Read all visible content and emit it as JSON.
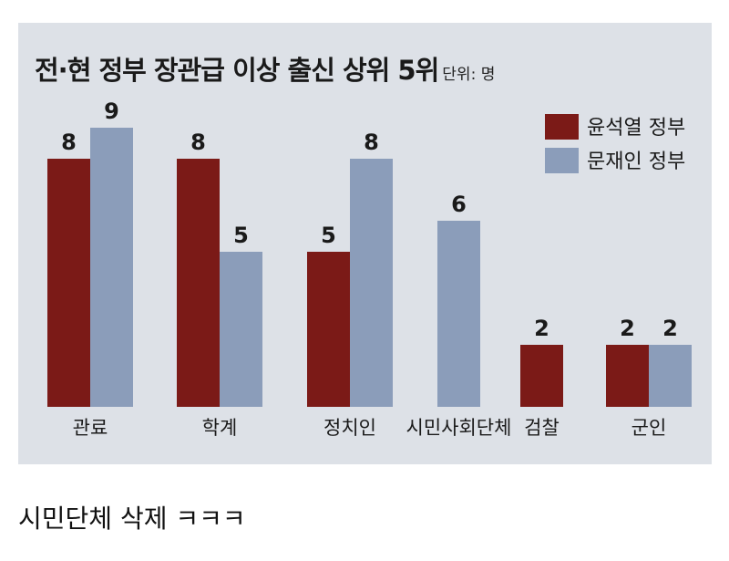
{
  "title": "전·현 정부 장관급 이상 출신 상위 5위",
  "unit": "단위: 명",
  "caption": "시민단체 삭제 ㅋㅋㅋ",
  "colors": {
    "yoon": "#7b1a17",
    "moon": "#8b9dba",
    "panel": "#dde1e7"
  },
  "chart_data": {
    "type": "bar",
    "categories": [
      "관료",
      "학계",
      "정치인",
      "시민사회단체",
      "검찰",
      "군인"
    ],
    "series": [
      {
        "name": "윤석열 정부",
        "values": [
          8,
          8,
          5,
          null,
          2,
          2
        ]
      },
      {
        "name": "문재인 정부",
        "values": [
          9,
          5,
          8,
          6,
          null,
          2
        ]
      }
    ],
    "ylim": [
      0,
      9
    ],
    "grid": false,
    "legend": "top-right",
    "data_labels": true
  }
}
